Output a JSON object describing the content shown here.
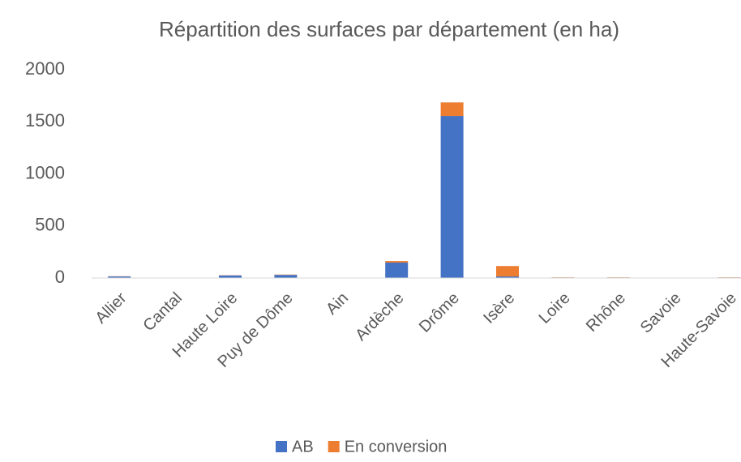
{
  "chart_data": {
    "type": "stacked_bar",
    "title": "Répartition des surfaces par département (en ha)",
    "categories": [
      "Allier",
      "Cantal",
      "Haute Loire",
      "Puy de Dôme",
      "Ain",
      "Ardèche",
      "Drôme",
      "Isère",
      "Loire",
      "Rhône",
      "Savoie",
      "Haute-Savoie"
    ],
    "series": [
      {
        "name": "AB",
        "color": "#4472c4",
        "values": [
          15,
          0,
          25,
          30,
          0,
          148,
          1556,
          15,
          5,
          5,
          0,
          5
        ]
      },
      {
        "name": "En conversion",
        "color": "#ed7d31",
        "values": [
          2,
          0,
          2,
          3,
          0,
          15,
          130,
          100,
          2,
          2,
          0,
          2
        ]
      }
    ],
    "ylim": [
      0,
      2000
    ],
    "yticks": [
      0,
      500,
      1000,
      1500,
      2000
    ],
    "grid": false,
    "legend": "bottom"
  }
}
